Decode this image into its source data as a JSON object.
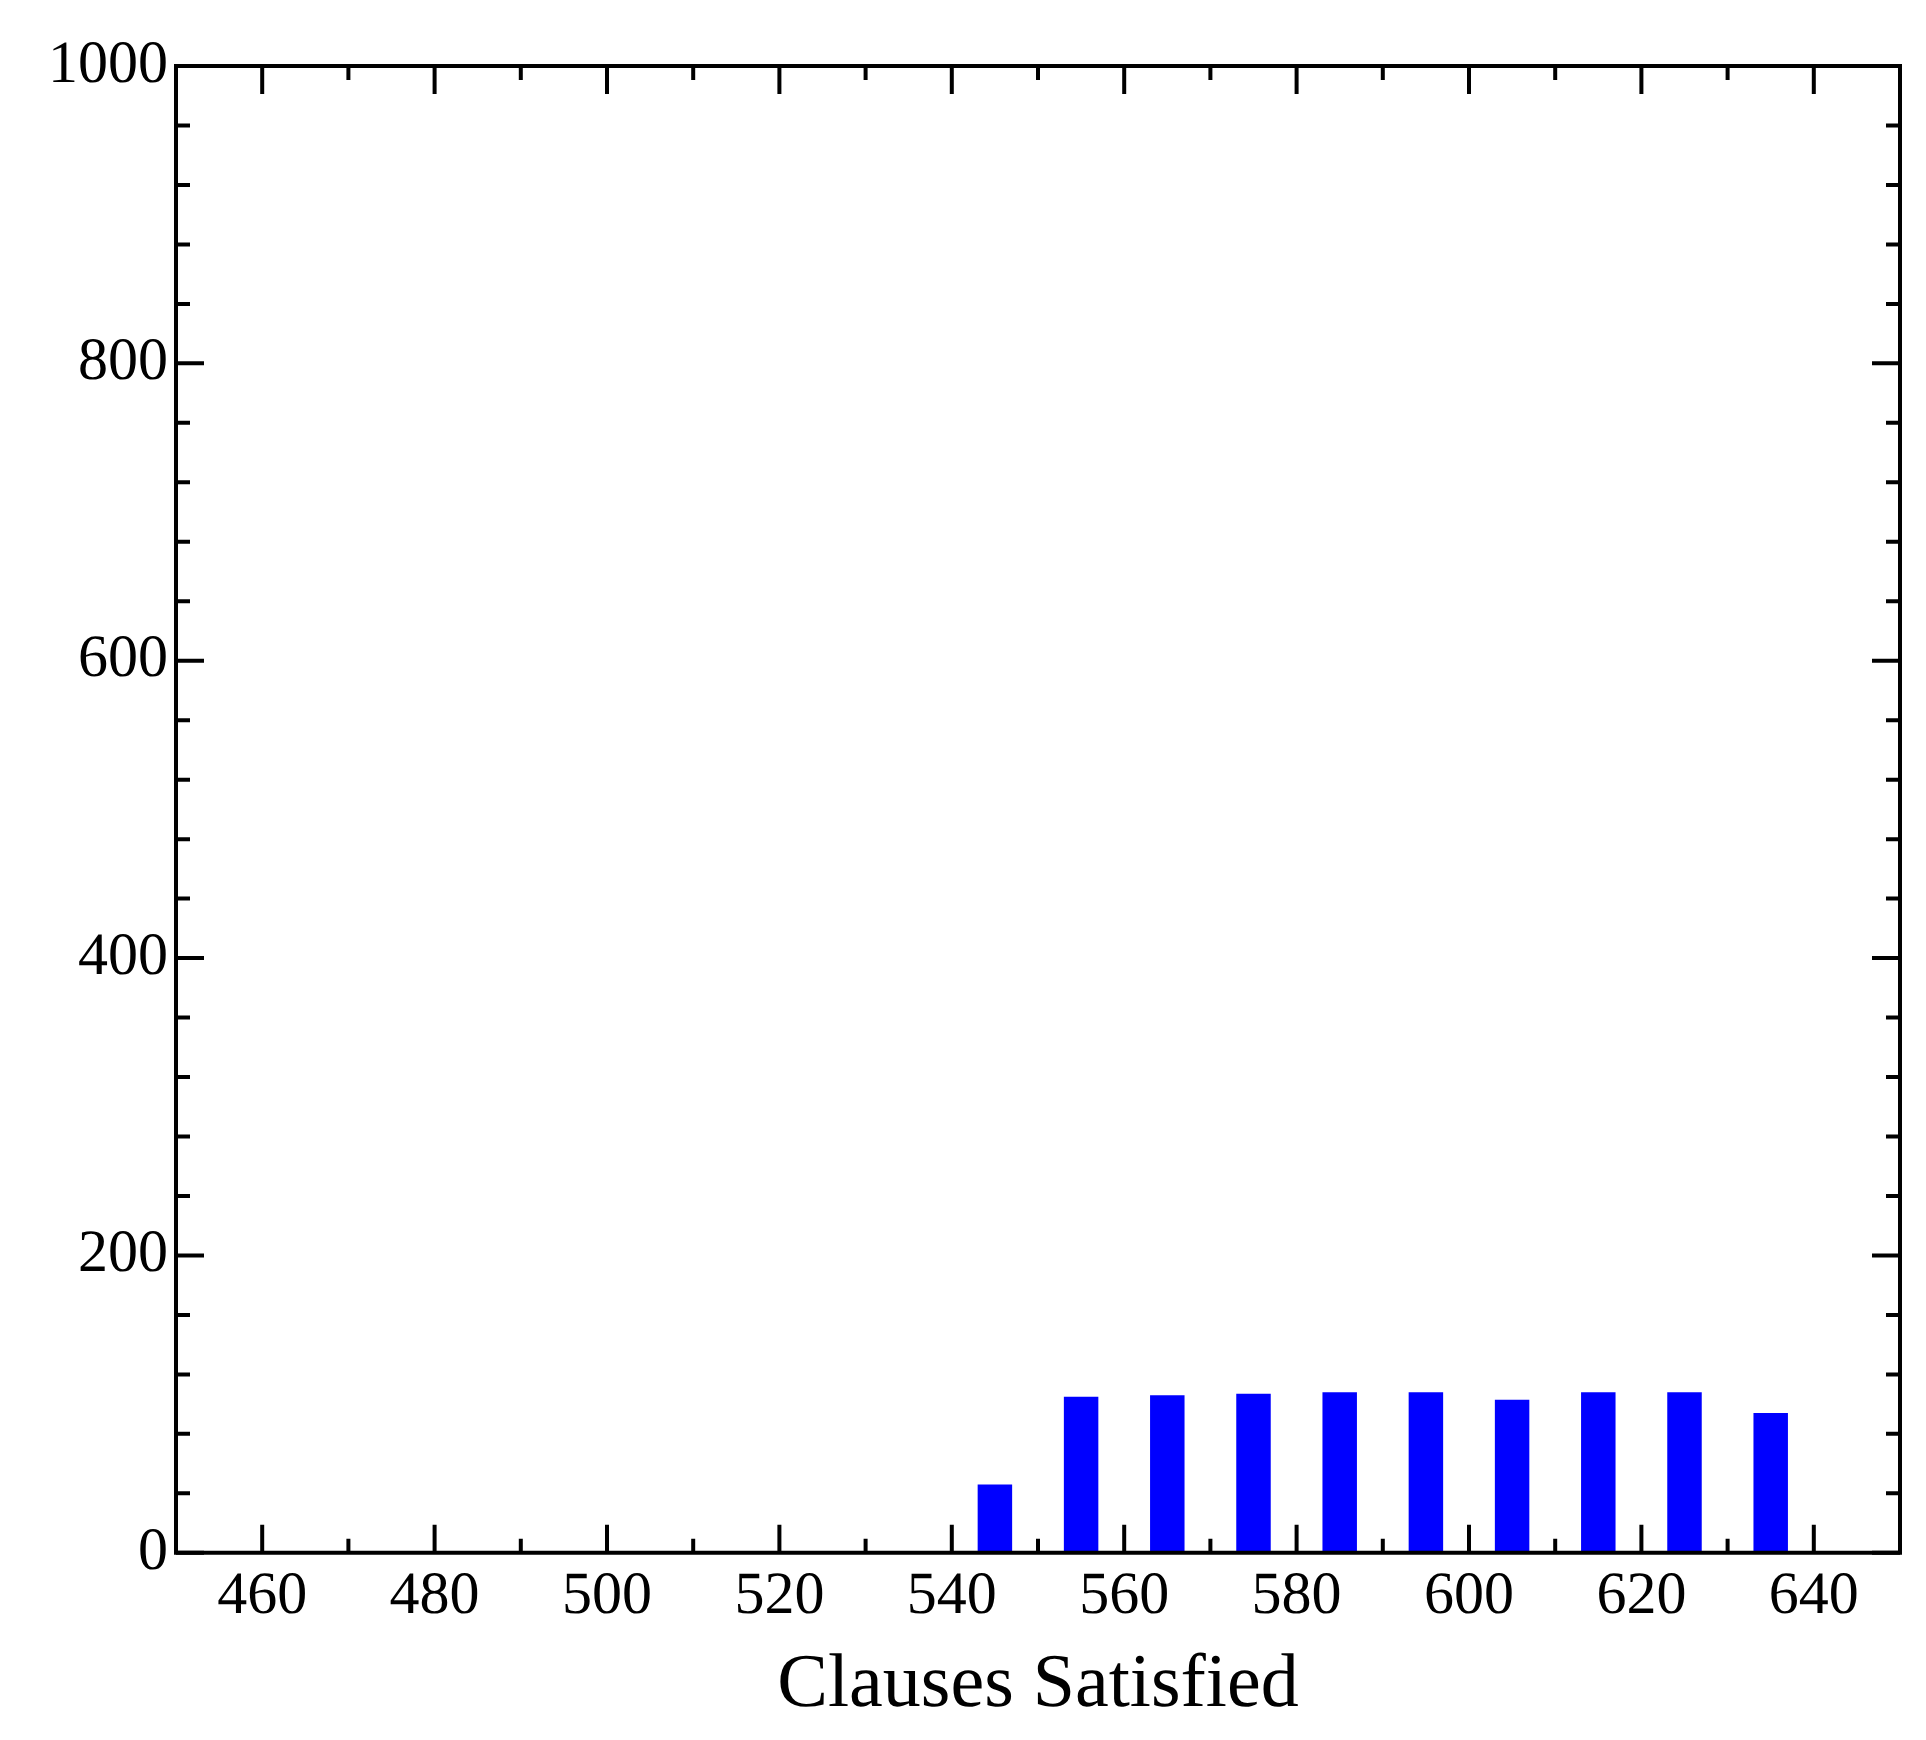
{
  "chart_data": {
    "type": "bar",
    "xlabel": "Clauses Satisfied",
    "x": [
      545,
      555,
      565,
      575,
      585,
      595,
      605,
      615,
      625,
      635
    ],
    "values": [
      46,
      105,
      106,
      107,
      108,
      108,
      103,
      108,
      108,
      94
    ],
    "color": "#0000ff",
    "xlim": [
      450,
      650
    ],
    "xticks": [
      {
        "value": 450,
        "label": null
      },
      460,
      {
        "value": 470,
        "label": null
      },
      480,
      {
        "value": 490,
        "label": null
      },
      500,
      {
        "value": 510,
        "label": null
      },
      520,
      {
        "value": 530,
        "label": null
      },
      540,
      {
        "value": 550,
        "label": null
      },
      560,
      {
        "value": 570,
        "label": null
      },
      580,
      {
        "value": 590,
        "label": null
      },
      600,
      {
        "value": 610,
        "label": null
      },
      620,
      {
        "value": 630,
        "label": null
      },
      640,
      {
        "value": 650,
        "label": null
      }
    ],
    "ylim": [
      0,
      1000
    ],
    "yticks": [
      0,
      {
        "value": 40,
        "label": null
      },
      {
        "value": 80,
        "label": null
      },
      {
        "value": 120,
        "label": null
      },
      {
        "value": 160,
        "label": null
      },
      200,
      {
        "value": 240,
        "label": null
      },
      {
        "value": 280,
        "label": null
      },
      {
        "value": 320,
        "label": null
      },
      {
        "value": 360,
        "label": null
      },
      400,
      {
        "value": 440,
        "label": null
      },
      {
        "value": 480,
        "label": null
      },
      {
        "value": 520,
        "label": null
      },
      {
        "value": 560,
        "label": null
      },
      600,
      {
        "value": 640,
        "label": null
      },
      {
        "value": 680,
        "label": null
      },
      {
        "value": 720,
        "label": null
      },
      {
        "value": 760,
        "label": null
      },
      800,
      {
        "value": 840,
        "label": null
      },
      {
        "value": 880,
        "label": null
      },
      {
        "value": 920,
        "label": null
      },
      {
        "value": 960,
        "label": null
      },
      1000
    ],
    "grid": false,
    "legend": false
  }
}
